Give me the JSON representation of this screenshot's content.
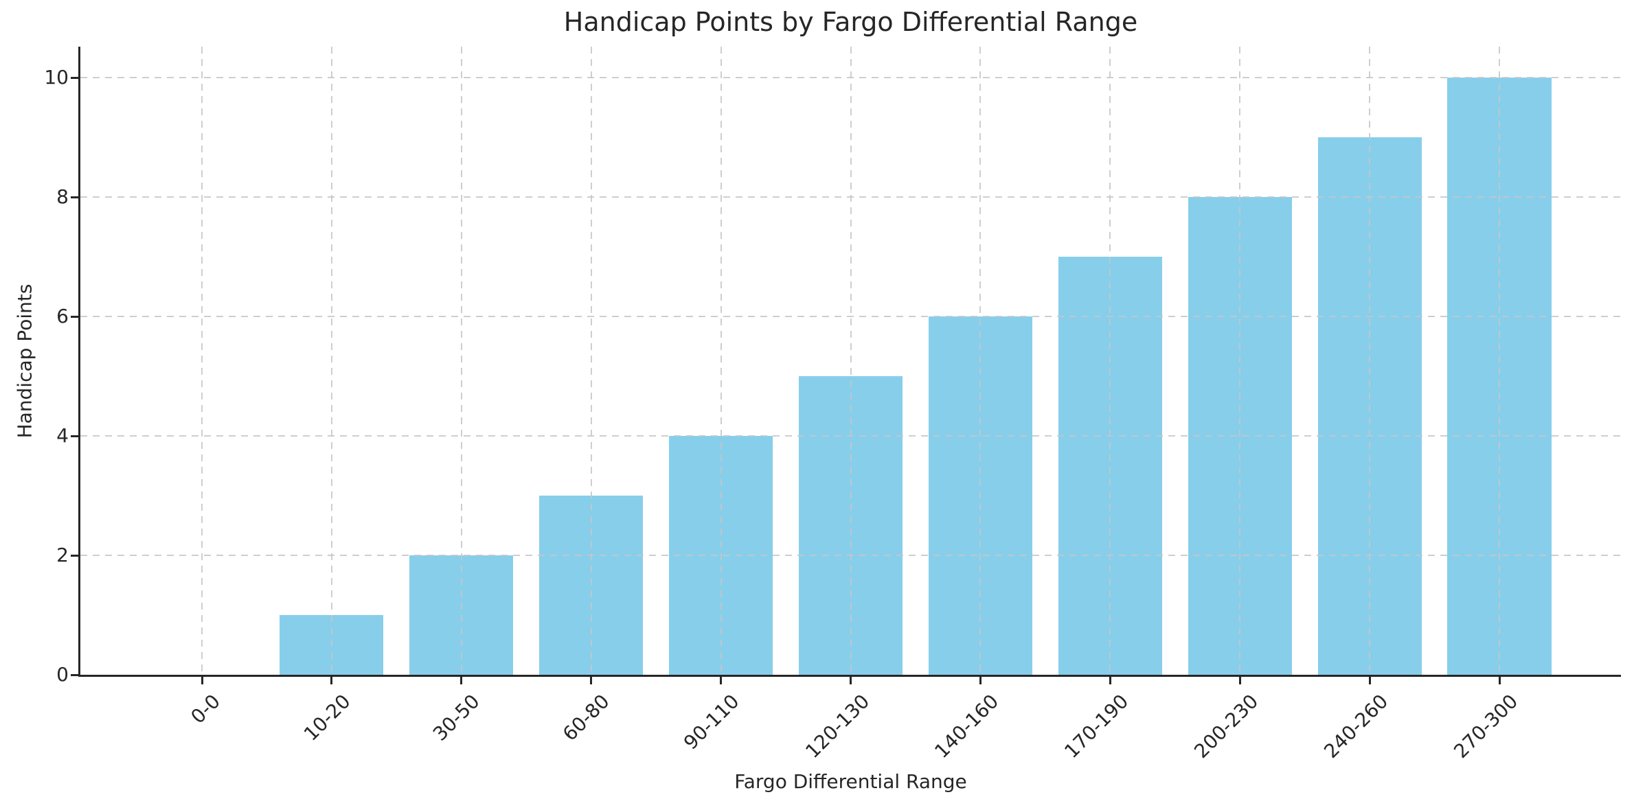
{
  "chart_data": {
    "type": "bar",
    "title": "Handicap Points by Fargo Differential Range",
    "xlabel": "Fargo Differential Range",
    "ylabel": "Handicap Points",
    "categories": [
      "0-0",
      "10-20",
      "30-50",
      "60-80",
      "90-110",
      "120-130",
      "140-160",
      "170-190",
      "200-230",
      "240-260",
      "270-300"
    ],
    "values": [
      0,
      1,
      2,
      3,
      4,
      5,
      6,
      7,
      8,
      9,
      10
    ],
    "yticks": [
      0,
      2,
      4,
      6,
      8,
      10
    ],
    "ylim": [
      0,
      10.5
    ],
    "grid": "dashed, drawn above bars",
    "legend": "none",
    "x_tick_rotation": 45,
    "colors": {
      "bar": "#87CEEB",
      "grid": "#c6c6c6",
      "spine": "#262626",
      "text": "#262626"
    }
  }
}
